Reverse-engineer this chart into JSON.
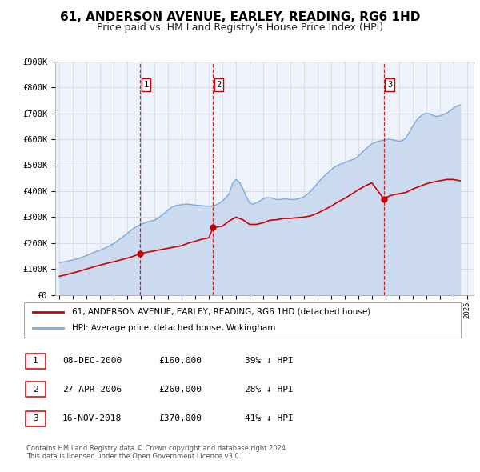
{
  "title": "61, ANDERSON AVENUE, EARLEY, READING, RG6 1HD",
  "subtitle": "Price paid vs. HM Land Registry's House Price Index (HPI)",
  "title_fontsize": 11,
  "subtitle_fontsize": 9,
  "background_color": "#ffffff",
  "plot_bg_color": "#eef2fa",
  "grid_color": "#d8dce8",
  "red_line_color": "#cc0000",
  "blue_line_color": "#7eaadd",
  "blue_fill_color": "#ccdaef",
  "ylim": [
    0,
    900000
  ],
  "yticks": [
    0,
    100000,
    200000,
    300000,
    400000,
    500000,
    600000,
    700000,
    800000,
    900000
  ],
  "ytick_labels": [
    "£0",
    "£100K",
    "£200K",
    "£300K",
    "£400K",
    "£500K",
    "£600K",
    "£700K",
    "£800K",
    "£900K"
  ],
  "xlim_start": 1994.7,
  "xlim_end": 2025.5,
  "xticks": [
    1995,
    1996,
    1997,
    1998,
    1999,
    2000,
    2001,
    2002,
    2003,
    2004,
    2005,
    2006,
    2007,
    2008,
    2009,
    2010,
    2011,
    2012,
    2013,
    2014,
    2015,
    2016,
    2017,
    2018,
    2019,
    2020,
    2021,
    2022,
    2023,
    2024,
    2025
  ],
  "sales": [
    {
      "date_num": 2000.94,
      "price": 160000,
      "label": "1"
    },
    {
      "date_num": 2006.32,
      "price": 260000,
      "label": "2"
    },
    {
      "date_num": 2018.88,
      "price": 370000,
      "label": "3"
    }
  ],
  "legend_entries": [
    "61, ANDERSON AVENUE, EARLEY, READING, RG6 1HD (detached house)",
    "HPI: Average price, detached house, Wokingham"
  ],
  "table_rows": [
    {
      "num": "1",
      "date": "08-DEC-2000",
      "price": "£160,000",
      "hpi": "39% ↓ HPI"
    },
    {
      "num": "2",
      "date": "27-APR-2006",
      "price": "£260,000",
      "hpi": "28% ↓ HPI"
    },
    {
      "num": "3",
      "date": "16-NOV-2018",
      "price": "£370,000",
      "hpi": "41% ↓ HPI"
    }
  ],
  "footnote": "Contains HM Land Registry data © Crown copyright and database right 2024.\nThis data is licensed under the Open Government Licence v3.0.",
  "hpi_x": [
    1995.0,
    1995.25,
    1995.5,
    1995.75,
    1996.0,
    1996.25,
    1996.5,
    1996.75,
    1997.0,
    1997.25,
    1997.5,
    1997.75,
    1998.0,
    1998.25,
    1998.5,
    1998.75,
    1999.0,
    1999.25,
    1999.5,
    1999.75,
    2000.0,
    2000.25,
    2000.5,
    2000.75,
    2001.0,
    2001.25,
    2001.5,
    2001.75,
    2002.0,
    2002.25,
    2002.5,
    2002.75,
    2003.0,
    2003.25,
    2003.5,
    2003.75,
    2004.0,
    2004.25,
    2004.5,
    2004.75,
    2005.0,
    2005.25,
    2005.5,
    2005.75,
    2006.0,
    2006.25,
    2006.5,
    2006.75,
    2007.0,
    2007.25,
    2007.5,
    2007.75,
    2008.0,
    2008.25,
    2008.5,
    2008.75,
    2009.0,
    2009.25,
    2009.5,
    2009.75,
    2010.0,
    2010.25,
    2010.5,
    2010.75,
    2011.0,
    2011.25,
    2011.5,
    2011.75,
    2012.0,
    2012.25,
    2012.5,
    2012.75,
    2013.0,
    2013.25,
    2013.5,
    2013.75,
    2014.0,
    2014.25,
    2014.5,
    2014.75,
    2015.0,
    2015.25,
    2015.5,
    2015.75,
    2016.0,
    2016.25,
    2016.5,
    2016.75,
    2017.0,
    2017.25,
    2017.5,
    2017.75,
    2018.0,
    2018.25,
    2018.5,
    2018.75,
    2019.0,
    2019.25,
    2019.5,
    2019.75,
    2020.0,
    2020.25,
    2020.5,
    2020.75,
    2021.0,
    2021.25,
    2021.5,
    2021.75,
    2022.0,
    2022.25,
    2022.5,
    2022.75,
    2023.0,
    2023.25,
    2023.5,
    2023.75,
    2024.0,
    2024.25,
    2024.5
  ],
  "hpi_y": [
    125000,
    127000,
    129000,
    132000,
    135000,
    138000,
    142000,
    147000,
    152000,
    158000,
    163000,
    168000,
    172000,
    178000,
    184000,
    191000,
    198000,
    207000,
    217000,
    227000,
    237000,
    248000,
    258000,
    265000,
    272000,
    277000,
    282000,
    285000,
    288000,
    295000,
    305000,
    316000,
    327000,
    337000,
    343000,
    346000,
    348000,
    350000,
    350000,
    348000,
    346000,
    345000,
    344000,
    343000,
    342000,
    343000,
    346000,
    353000,
    362000,
    375000,
    390000,
    430000,
    445000,
    435000,
    410000,
    380000,
    355000,
    350000,
    355000,
    362000,
    370000,
    375000,
    375000,
    372000,
    368000,
    368000,
    370000,
    370000,
    368000,
    368000,
    370000,
    373000,
    378000,
    388000,
    400000,
    415000,
    430000,
    445000,
    458000,
    470000,
    482000,
    493000,
    500000,
    505000,
    510000,
    515000,
    520000,
    525000,
    535000,
    548000,
    560000,
    572000,
    582000,
    588000,
    592000,
    595000,
    598000,
    600000,
    598000,
    595000,
    592000,
    595000,
    605000,
    625000,
    650000,
    670000,
    685000,
    695000,
    700000,
    698000,
    692000,
    688000,
    690000,
    695000,
    700000,
    710000,
    720000,
    728000,
    732000
  ],
  "red_x": [
    1995.0,
    1995.5,
    1996.0,
    1996.5,
    1997.0,
    1997.5,
    1998.0,
    1998.5,
    1999.0,
    1999.5,
    2000.0,
    2000.5,
    2000.94,
    2001.5,
    2002.0,
    2002.5,
    2003.0,
    2003.5,
    2004.0,
    2004.5,
    2005.0,
    2005.5,
    2006.0,
    2006.32,
    2007.0,
    2007.5,
    2008.0,
    2008.5,
    2009.0,
    2009.5,
    2010.0,
    2010.5,
    2011.0,
    2011.5,
    2012.0,
    2012.5,
    2013.0,
    2013.5,
    2014.0,
    2014.5,
    2015.0,
    2015.5,
    2016.0,
    2016.5,
    2017.0,
    2017.5,
    2018.0,
    2018.88,
    2019.0,
    2019.5,
    2020.0,
    2020.5,
    2021.0,
    2021.5,
    2022.0,
    2022.5,
    2023.0,
    2023.5,
    2024.0,
    2024.5
  ],
  "red_y": [
    72000,
    78000,
    85000,
    92000,
    100000,
    108000,
    115000,
    122000,
    128000,
    135000,
    142000,
    150000,
    160000,
    165000,
    170000,
    175000,
    180000,
    185000,
    190000,
    200000,
    207000,
    215000,
    220000,
    260000,
    265000,
    285000,
    300000,
    290000,
    272000,
    272000,
    278000,
    288000,
    290000,
    295000,
    295000,
    298000,
    300000,
    305000,
    315000,
    328000,
    342000,
    358000,
    372000,
    388000,
    405000,
    420000,
    432000,
    370000,
    375000,
    385000,
    390000,
    395000,
    408000,
    418000,
    428000,
    435000,
    440000,
    445000,
    445000,
    440000
  ]
}
